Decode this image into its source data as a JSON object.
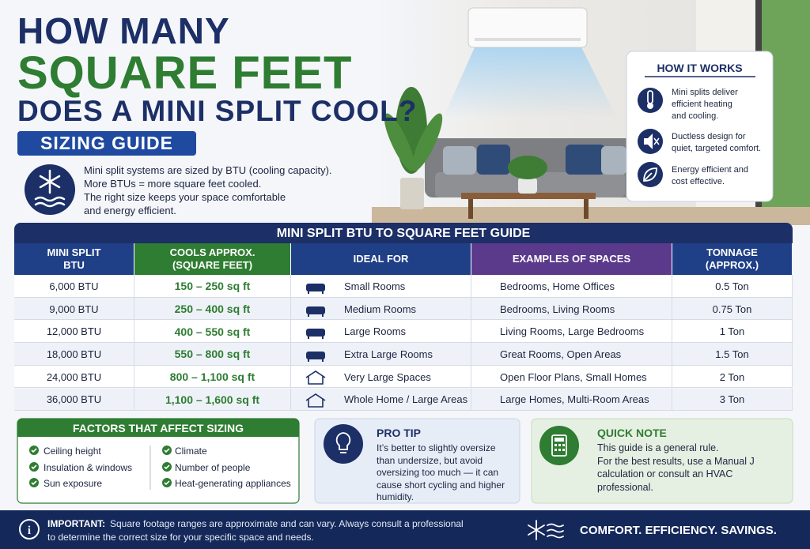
{
  "title": {
    "lines": [
      "HOW MANY",
      "SQUARE FEET",
      "DOES A MINI SPLIT COOL?"
    ]
  },
  "badge": "SIZING GUIDE",
  "intro": [
    "Mini split systems are sized by BTU (cooling capacity).",
    "More BTUs = more square feet cooled.",
    "The right size keeps your space comfortable",
    "and energy efficient."
  ],
  "how_it_works": {
    "title": "HOW IT WORKS",
    "items": [
      [
        "Mini splits deliver",
        "efficient heating",
        "and cooling."
      ],
      [
        "Ductless design for",
        "quiet, targeted comfort."
      ],
      [
        "Energy efficient and",
        "cost effective."
      ]
    ]
  },
  "table": {
    "title": "MINI SPLIT BTU TO SQUARE FEET GUIDE",
    "headers": [
      [
        "MINI SPLIT",
        "BTU"
      ],
      [
        "COOLS APPROX.",
        "(SQUARE FEET)"
      ],
      [
        "IDEAL FOR"
      ],
      [
        "EXAMPLES OF SPACES"
      ],
      [
        "TONNAGE",
        "(APPROX.)"
      ]
    ],
    "rows": [
      [
        "6,000 BTU",
        "150 – 250 sq ft",
        "Small Rooms",
        "Bedrooms, Home Offices",
        "0.5 Ton"
      ],
      [
        "9,000 BTU",
        "250 – 400 sq ft",
        "Medium Rooms",
        "Bedrooms, Living Rooms",
        "0.75 Ton"
      ],
      [
        "12,000 BTU",
        "400 – 550 sq ft",
        "Large Rooms",
        "Living Rooms, Large Bedrooms",
        "1 Ton"
      ],
      [
        "18,000 BTU",
        "550 – 800 sq ft",
        "Extra Large Rooms",
        "Great Rooms, Open Areas",
        "1.5 Ton"
      ],
      [
        "24,000 BTU",
        "800 – 1,100 sq ft",
        "Very Large Spaces",
        "Open Floor Plans, Small Homes",
        "2 Ton"
      ],
      [
        "36,000 BTU",
        "1,100 – 1,600 sq ft",
        "Whole Home / Large Areas",
        "Large Homes, Multi-Room Areas",
        "3 Ton"
      ]
    ]
  },
  "factors": {
    "title": "FACTORS THAT AFFECT SIZING",
    "items": [
      "Ceiling height",
      "Insulation & windows",
      "Sun exposure",
      "Climate",
      "Number of people",
      "Heat-generating appliances"
    ]
  },
  "pro_tip": {
    "title": "PRO TIP",
    "lines": [
      "It’s better to slightly oversize",
      "than undersize, but avoid",
      "oversizing too much — it can",
      "cause short cycling and higher",
      "humidity."
    ]
  },
  "quick_note": {
    "title": "QUICK NOTE",
    "lines": [
      "This guide is a general rule.",
      "For the best results, use a Manual J",
      "calculation or consult an HVAC",
      "professional."
    ]
  },
  "footer": {
    "label": "IMPORTANT:",
    "lines": [
      "Square footage ranges are approximate and can vary. Always consult a professional",
      "to determine the correct size for your specific space and needs."
    ],
    "slogan": "COMFORT. EFFICIENCY. SAVINGS."
  }
}
